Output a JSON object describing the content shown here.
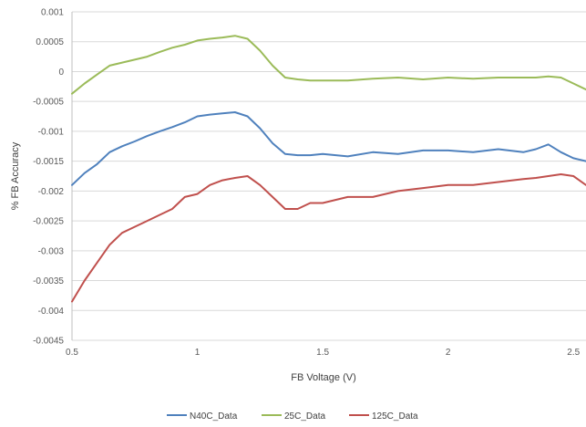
{
  "chart_data": {
    "type": "line",
    "title": "",
    "xlabel": "FB Voltage (V)",
    "ylabel": "% FB Accuracy",
    "xlim": [
      0.5,
      2.55
    ],
    "ylim": [
      -0.0045,
      0.001
    ],
    "x_ticks": [
      0.5,
      1,
      1.5,
      2,
      2.5
    ],
    "x_tick_labels": [
      "0.5",
      "1",
      "1.5",
      "2",
      "2.5"
    ],
    "y_ticks": [
      0.001,
      0.0005,
      0,
      -0.0005,
      -0.001,
      -0.0015,
      -0.002,
      -0.0025,
      -0.003,
      -0.0035,
      -0.004,
      -0.0045
    ],
    "y_tick_labels": [
      "0.001",
      "0.0005",
      "0",
      "-0.0005",
      "-0.001",
      "-0.0015",
      "-0.002",
      "-0.0025",
      "-0.003",
      "-0.0035",
      "-0.004",
      "-0.0045"
    ],
    "grid": "horizontal",
    "legend_position": "bottom",
    "series": [
      {
        "name": "N40C_Data",
        "color": "#4f81bd",
        "x": [
          0.5,
          0.55,
          0.6,
          0.65,
          0.7,
          0.75,
          0.8,
          0.85,
          0.9,
          0.95,
          1.0,
          1.05,
          1.1,
          1.15,
          1.2,
          1.25,
          1.3,
          1.35,
          1.4,
          1.45,
          1.5,
          1.6,
          1.7,
          1.8,
          1.9,
          2.0,
          2.1,
          2.2,
          2.3,
          2.35,
          2.4,
          2.45,
          2.5,
          2.55
        ],
        "y": [
          -0.0019,
          -0.0017,
          -0.00155,
          -0.00135,
          -0.00125,
          -0.00117,
          -0.00108,
          -0.001,
          -0.00093,
          -0.00085,
          -0.00075,
          -0.00072,
          -0.0007,
          -0.00068,
          -0.00075,
          -0.00095,
          -0.0012,
          -0.00138,
          -0.0014,
          -0.0014,
          -0.00138,
          -0.00142,
          -0.00135,
          -0.00138,
          -0.00132,
          -0.00132,
          -0.00135,
          -0.0013,
          -0.00135,
          -0.0013,
          -0.00122,
          -0.00135,
          -0.00145,
          -0.0015
        ]
      },
      {
        "name": "25C_Data",
        "color": "#9bbb59",
        "x": [
          0.5,
          0.55,
          0.6,
          0.65,
          0.7,
          0.75,
          0.8,
          0.85,
          0.9,
          0.95,
          1.0,
          1.05,
          1.1,
          1.15,
          1.2,
          1.25,
          1.3,
          1.35,
          1.4,
          1.45,
          1.5,
          1.6,
          1.7,
          1.8,
          1.9,
          2.0,
          2.1,
          2.2,
          2.3,
          2.35,
          2.4,
          2.45,
          2.5,
          2.55
        ],
        "y": [
          -0.00037,
          -0.0002,
          -5e-05,
          0.0001,
          0.00015,
          0.0002,
          0.00025,
          0.00033,
          0.0004,
          0.00045,
          0.00052,
          0.00055,
          0.00057,
          0.0006,
          0.00055,
          0.00035,
          0.0001,
          -0.0001,
          -0.00013,
          -0.00015,
          -0.00015,
          -0.00015,
          -0.00012,
          -0.0001,
          -0.00013,
          -0.0001,
          -0.00012,
          -0.0001,
          -0.0001,
          -0.0001,
          -8e-05,
          -0.0001,
          -0.0002,
          -0.0003
        ]
      },
      {
        "name": "125C_Data",
        "color": "#c0504d",
        "x": [
          0.5,
          0.55,
          0.6,
          0.65,
          0.7,
          0.75,
          0.8,
          0.85,
          0.9,
          0.95,
          1.0,
          1.05,
          1.1,
          1.15,
          1.2,
          1.25,
          1.3,
          1.35,
          1.4,
          1.45,
          1.5,
          1.6,
          1.7,
          1.8,
          1.9,
          2.0,
          2.1,
          2.2,
          2.3,
          2.35,
          2.4,
          2.45,
          2.5,
          2.55
        ],
        "y": [
          -0.00385,
          -0.0035,
          -0.0032,
          -0.0029,
          -0.0027,
          -0.0026,
          -0.0025,
          -0.0024,
          -0.0023,
          -0.0021,
          -0.00205,
          -0.0019,
          -0.00182,
          -0.00178,
          -0.00175,
          -0.0019,
          -0.0021,
          -0.0023,
          -0.0023,
          -0.0022,
          -0.0022,
          -0.0021,
          -0.0021,
          -0.002,
          -0.00195,
          -0.0019,
          -0.0019,
          -0.00185,
          -0.0018,
          -0.00178,
          -0.00175,
          -0.00172,
          -0.00175,
          -0.0019
        ]
      }
    ]
  }
}
